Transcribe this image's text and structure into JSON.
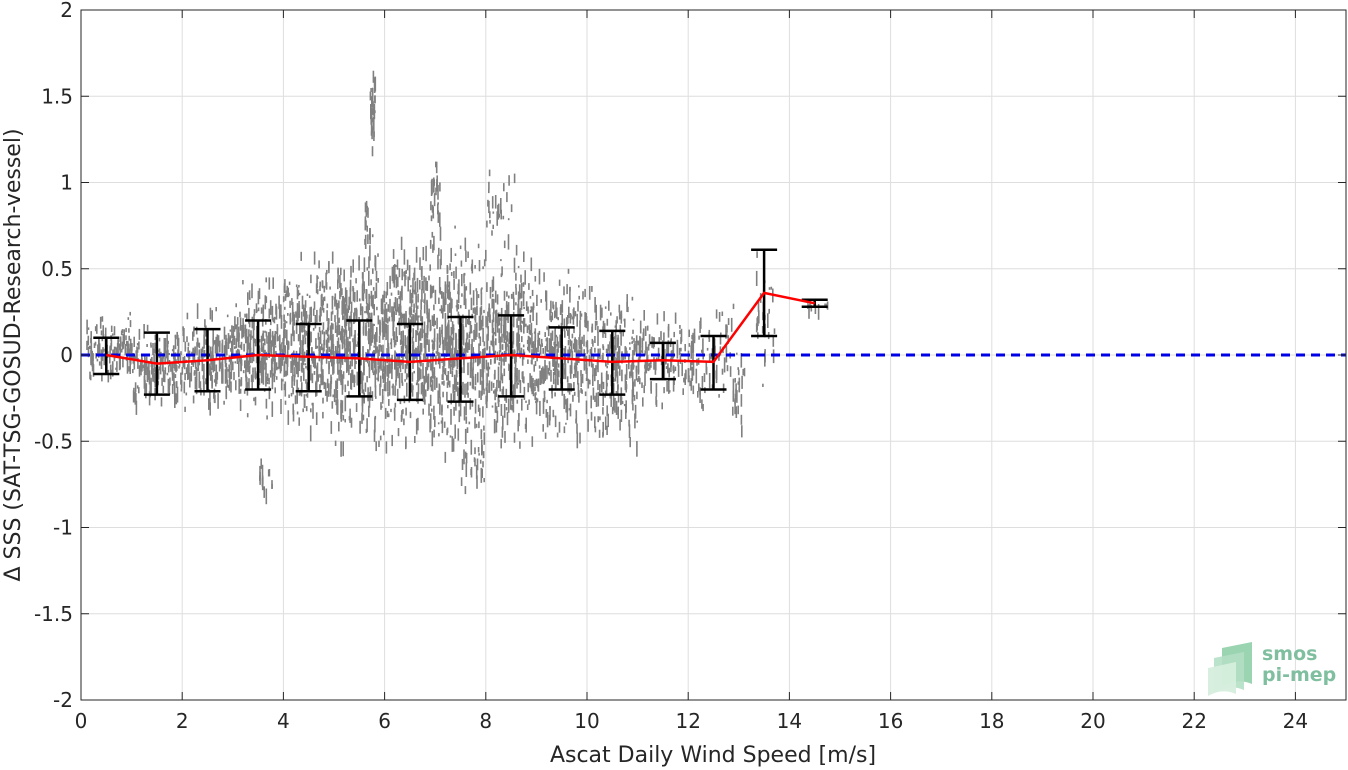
{
  "chart_data": {
    "type": "scatter",
    "xlabel": "Ascat Daily Wind Speed [m/s]",
    "ylabel": "Δ SSS (SAT-TSG-GOSUD-Research-vessel)",
    "xlim": [
      0,
      25
    ],
    "ylim": [
      -2,
      2
    ],
    "xticks": [
      0,
      2,
      4,
      6,
      8,
      10,
      12,
      14,
      16,
      18,
      20,
      22,
      24
    ],
    "yticks": [
      -2,
      -1.5,
      -1,
      -0.5,
      0,
      0.5,
      1,
      1.5,
      2
    ],
    "ytick_labels": [
      "-2",
      "-1.5",
      "-1",
      "-0.5",
      "0",
      "0.5",
      "1",
      "1.5",
      "2"
    ],
    "grid": true,
    "zero_reference_line": {
      "y": 0,
      "style": "dashed",
      "color": "#0000e6"
    },
    "binned_stats": {
      "x": [
        0.5,
        1.5,
        2.5,
        3.5,
        4.5,
        5.5,
        6.5,
        7.5,
        8.5,
        9.5,
        10.5,
        11.5,
        12.5,
        13.5,
        14.5
      ],
      "mean": [
        0.0,
        -0.05,
        -0.03,
        0.0,
        -0.01,
        -0.02,
        -0.04,
        -0.02,
        0.0,
        -0.02,
        -0.04,
        -0.03,
        -0.04,
        0.36,
        0.3
      ],
      "std_lower": [
        -0.11,
        -0.23,
        -0.21,
        -0.2,
        -0.21,
        -0.24,
        -0.26,
        -0.27,
        -0.24,
        -0.2,
        -0.23,
        -0.14,
        -0.2,
        0.11,
        0.28
      ],
      "std_upper": [
        0.1,
        0.13,
        0.15,
        0.2,
        0.18,
        0.2,
        0.18,
        0.22,
        0.23,
        0.16,
        0.14,
        0.07,
        0.11,
        0.61,
        0.32
      ],
      "mean_color": "#ff0000",
      "errorbar_color": "#000000"
    },
    "scatter_color": "#808080",
    "scatter_clusters": [
      {
        "x_range": [
          0.1,
          1.0
        ],
        "y_range": [
          -0.13,
          0.25
        ],
        "count": 120
      },
      {
        "x_range": [
          1.0,
          2.0
        ],
        "y_range": [
          -0.3,
          0.2
        ],
        "count": 160
      },
      {
        "x_range": [
          2.0,
          3.0
        ],
        "y_range": [
          -0.3,
          0.3
        ],
        "count": 180
      },
      {
        "x_range": [
          3.0,
          4.0
        ],
        "y_range": [
          -0.35,
          0.45
        ],
        "count": 260
      },
      {
        "x_range": [
          4.0,
          5.0
        ],
        "y_range": [
          -0.45,
          0.6
        ],
        "count": 320
      },
      {
        "x_range": [
          5.0,
          6.0
        ],
        "y_range": [
          -0.5,
          0.7
        ],
        "count": 380
      },
      {
        "x_range": [
          6.0,
          7.0
        ],
        "y_range": [
          -0.5,
          0.7
        ],
        "count": 380
      },
      {
        "x_range": [
          7.0,
          8.0
        ],
        "y_range": [
          -0.6,
          0.75
        ],
        "count": 360
      },
      {
        "x_range": [
          8.0,
          9.0
        ],
        "y_range": [
          -0.5,
          0.6
        ],
        "count": 320
      },
      {
        "x_range": [
          9.0,
          10.0
        ],
        "y_range": [
          -0.45,
          0.5
        ],
        "count": 260
      },
      {
        "x_range": [
          10.0,
          11.0
        ],
        "y_range": [
          -0.5,
          0.4
        ],
        "count": 220
      },
      {
        "x_range": [
          11.0,
          12.0
        ],
        "y_range": [
          -0.3,
          0.3
        ],
        "count": 120
      },
      {
        "x_range": [
          12.0,
          12.9
        ],
        "y_range": [
          -0.3,
          0.3
        ],
        "count": 80
      },
      {
        "x_range": [
          12.9,
          13.1
        ],
        "y_range": [
          -0.43,
          0.05
        ],
        "count": 25
      },
      {
        "x_range": [
          13.3,
          13.7
        ],
        "y_range": [
          -0.22,
          0.7
        ],
        "count": 30
      },
      {
        "x_range": [
          14.3,
          14.8
        ],
        "y_range": [
          0.28,
          0.32
        ],
        "count": 10
      },
      {
        "x_range": [
          5.7,
          5.8
        ],
        "y_range": [
          1.2,
          1.68
        ],
        "count": 30
      },
      {
        "x_range": [
          5.6,
          5.7
        ],
        "y_range": [
          0.6,
          1.0
        ],
        "count": 15
      },
      {
        "x_range": [
          6.9,
          7.1
        ],
        "y_range": [
          0.6,
          1.25
        ],
        "count": 25
      },
      {
        "x_range": [
          8.0,
          8.6
        ],
        "y_range": [
          0.6,
          1.15
        ],
        "count": 30
      },
      {
        "x_range": [
          3.5,
          3.9
        ],
        "y_range": [
          -0.85,
          -0.6
        ],
        "count": 15
      },
      {
        "x_range": [
          7.5,
          8.0
        ],
        "y_range": [
          -0.77,
          -0.5
        ],
        "count": 20
      }
    ]
  },
  "logo": {
    "line1": "smos",
    "line2": "pi-mep"
  }
}
